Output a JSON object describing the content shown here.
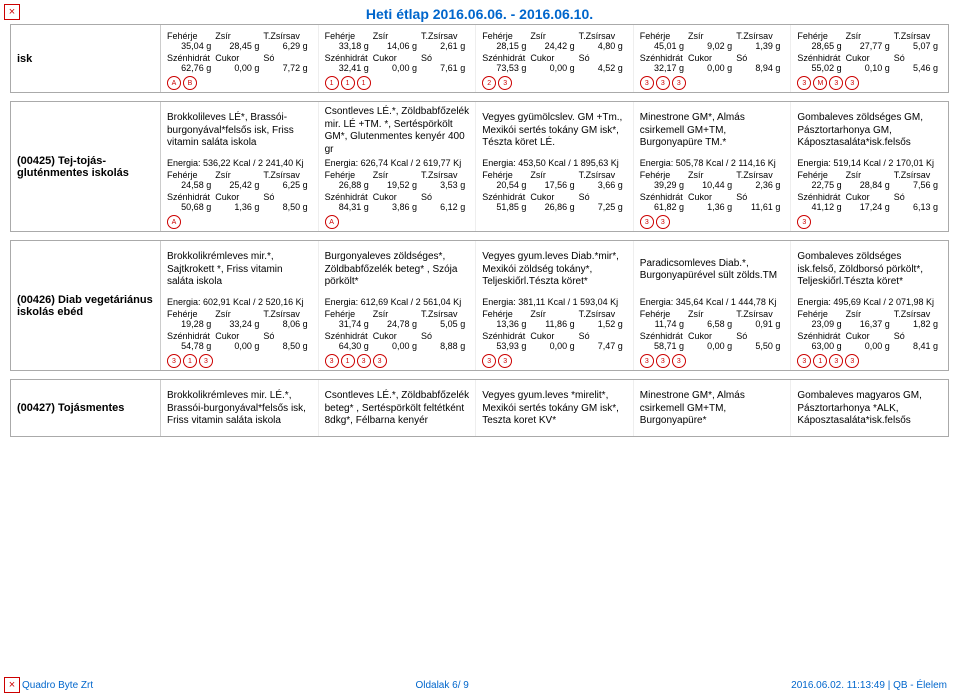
{
  "title": "Heti étlap 2016.06.06. - 2016.06.10.",
  "sections": [
    {
      "label": "isk",
      "noMenu": true,
      "days": [
        {
          "menu": "",
          "energy": "",
          "r1h": [
            "Fehérje",
            "Zsír",
            "T.Zsírsav"
          ],
          "r1v": [
            "35,04 g",
            "28,45 g",
            "6,29 g"
          ],
          "r2h": [
            "Szénhidrát",
            "Cukor",
            "Só"
          ],
          "r2v": [
            "62,76 g",
            "0,00 g",
            "7,72 g"
          ],
          "icons": [
            "A",
            "B"
          ]
        },
        {
          "menu": "",
          "energy": "",
          "r1h": [
            "Fehérje",
            "Zsír",
            "T.Zsírsav"
          ],
          "r1v": [
            "33,18 g",
            "14,06 g",
            "2,61 g"
          ],
          "r2h": [
            "Szénhidrát",
            "Cukor",
            "Só"
          ],
          "r2v": [
            "32,41 g",
            "0,00 g",
            "7,61 g"
          ],
          "icons": [
            "1",
            "1",
            "1"
          ]
        },
        {
          "menu": "",
          "energy": "",
          "r1h": [
            "Fehérje",
            "Zsír",
            "T.Zsírsav"
          ],
          "r1v": [
            "28,15 g",
            "24,42 g",
            "4,80 g"
          ],
          "r2h": [
            "Szénhidrát",
            "Cukor",
            "Só"
          ],
          "r2v": [
            "73,53 g",
            "0,00 g",
            "4,52 g"
          ],
          "icons": [
            "2",
            "3"
          ]
        },
        {
          "menu": "",
          "energy": "",
          "r1h": [
            "Fehérje",
            "Zsír",
            "T.Zsírsav"
          ],
          "r1v": [
            "45,01 g",
            "9,02 g",
            "1,39 g"
          ],
          "r2h": [
            "Szénhidrát",
            "Cukor",
            "Só"
          ],
          "r2v": [
            "32,17 g",
            "0,00 g",
            "8,94 g"
          ],
          "icons": [
            "3",
            "3",
            "3"
          ]
        },
        {
          "menu": "",
          "energy": "",
          "r1h": [
            "Fehérje",
            "Zsír",
            "T.Zsírsav"
          ],
          "r1v": [
            "28,65 g",
            "27,77 g",
            "5,07 g"
          ],
          "r2h": [
            "Szénhidrát",
            "Cukor",
            "Só"
          ],
          "r2v": [
            "55,02 g",
            "0,10 g",
            "5,46 g"
          ],
          "icons": [
            "3",
            "M",
            "3",
            "3"
          ]
        }
      ]
    },
    {
      "label": "(00425) Tej-tojás-gluténmentes iskolás",
      "days": [
        {
          "menu": "Brokkolileves LÉ*, Brassói-burgonyával*felsős isk, Friss vitamin saláta iskola",
          "energy": "Energia: 536,22 Kcal / 2 241,40 Kj",
          "r1h": [
            "Fehérje",
            "Zsír",
            "T.Zsírsav"
          ],
          "r1v": [
            "24,58 g",
            "25,42 g",
            "6,25 g"
          ],
          "r2h": [
            "Szénhidrát",
            "Cukor",
            "Só"
          ],
          "r2v": [
            "50,68 g",
            "1,36 g",
            "8,50 g"
          ],
          "icons": [
            "A"
          ]
        },
        {
          "menu": "Csontleves  LÉ.*, Zöldbabfőzelék mir. LÉ +TM. *, Sertéspörkölt GM*, Glutenmentes kenyér 400 gr",
          "energy": "Energia: 626,74 Kcal / 2 619,77 Kj",
          "r1h": [
            "Fehérje",
            "Zsír",
            "T.Zsírsav"
          ],
          "r1v": [
            "26,88 g",
            "19,52 g",
            "3,53 g"
          ],
          "r2h": [
            "Szénhidrát",
            "Cukor",
            "Só"
          ],
          "r2v": [
            "84,31 g",
            "3,86 g",
            "6,12 g"
          ],
          "icons": [
            "A"
          ]
        },
        {
          "menu": "Vegyes gyümölcslev. GM +Tm., Mexikói sertés tokány GM isk*, Tészta köret LÉ.",
          "energy": "Energia: 453,50 Kcal / 1 895,63 Kj",
          "r1h": [
            "Fehérje",
            "Zsír",
            "T.Zsírsav"
          ],
          "r1v": [
            "20,54 g",
            "17,56 g",
            "3,66 g"
          ],
          "r2h": [
            "Szénhidrát",
            "Cukor",
            "Só"
          ],
          "r2v": [
            "51,85 g",
            "26,86 g",
            "7,25 g"
          ],
          "icons": []
        },
        {
          "menu": "Minestrone GM*, Almás csirkemell GM+TM, Burgonyapüre TM.*",
          "energy": "Energia: 505,78 Kcal / 2 114,16 Kj",
          "r1h": [
            "Fehérje",
            "Zsír",
            "T.Zsírsav"
          ],
          "r1v": [
            "39,29 g",
            "10,44 g",
            "2,36 g"
          ],
          "r2h": [
            "Szénhidrát",
            "Cukor",
            "Só"
          ],
          "r2v": [
            "61,82 g",
            "1,36 g",
            "11,61 g"
          ],
          "icons": [
            "3",
            "3"
          ]
        },
        {
          "menu": "Gombaleves zöldséges GM, Pásztortarhonya GM, Káposztasaláta*isk.felsős",
          "energy": "Energia: 519,14 Kcal / 2 170,01 Kj",
          "r1h": [
            "Fehérje",
            "Zsír",
            "T.Zsírsav"
          ],
          "r1v": [
            "22,75 g",
            "28,84 g",
            "7,56 g"
          ],
          "r2h": [
            "Szénhidrát",
            "Cukor",
            "Só"
          ],
          "r2v": [
            "41,12 g",
            "17,24 g",
            "6,13 g"
          ],
          "icons": [
            "3"
          ]
        }
      ]
    },
    {
      "label": "(00426) Diab vegetáriánus iskolás ebéd",
      "days": [
        {
          "menu": "Brokkolikrémleves  mir.*, Sajtkrokett *, Friss vitamin saláta iskola",
          "energy": "Energia: 602,91 Kcal / 2 520,16 Kj",
          "r1h": [
            "Fehérje",
            "Zsír",
            "T.Zsírsav"
          ],
          "r1v": [
            "19,28 g",
            "33,24 g",
            "8,06 g"
          ],
          "r2h": [
            "Szénhidrát",
            "Cukor",
            "Só"
          ],
          "r2v": [
            "54,78 g",
            "0,00 g",
            "8,50 g"
          ],
          "icons": [
            "3",
            "1",
            "3"
          ]
        },
        {
          "menu": "Burgonyaleves zöldséges*, Zöldbabfőzelék beteg* , Szója pörkölt*",
          "energy": "Energia: 612,69 Kcal / 2 561,04 Kj",
          "r1h": [
            "Fehérje",
            "Zsír",
            "T.Zsírsav"
          ],
          "r1v": [
            "31,74 g",
            "24,78 g",
            "5,05 g"
          ],
          "r2h": [
            "Szénhidrát",
            "Cukor",
            "Só"
          ],
          "r2v": [
            "64,30 g",
            "0,00 g",
            "8,88 g"
          ],
          "icons": [
            "3",
            "1",
            "3",
            "3"
          ]
        },
        {
          "menu": "Vegyes gyum.leves Diab.*mir*, Mexikói zöldség tokány*, Teljeskiőrl.Tészta köret*",
          "energy": "Energia: 381,11 Kcal / 1 593,04 Kj",
          "r1h": [
            "Fehérje",
            "Zsír",
            "T.Zsírsav"
          ],
          "r1v": [
            "13,36 g",
            "11,86 g",
            "1,52 g"
          ],
          "r2h": [
            "Szénhidrát",
            "Cukor",
            "Só"
          ],
          "r2v": [
            "53,93 g",
            "0,00 g",
            "7,47 g"
          ],
          "icons": [
            "3",
            "3"
          ]
        },
        {
          "menu": "Paradicsomleves Diab.*, Burgonyapürével sült zölds.TM",
          "energy": "Energia: 345,64 Kcal / 1 444,78 Kj",
          "r1h": [
            "Fehérje",
            "Zsír",
            "T.Zsírsav"
          ],
          "r1v": [
            "11,74 g",
            "6,58 g",
            "0,91 g"
          ],
          "r2h": [
            "Szénhidrát",
            "Cukor",
            "Só"
          ],
          "r2v": [
            "58,71 g",
            "0,00 g",
            "5,50 g"
          ],
          "icons": [
            "3",
            "3",
            "3"
          ]
        },
        {
          "menu": "Gombaleves zöldséges isk.felső, Zöldborsó pörkölt*, Teljeskiőrl.Tészta köret*",
          "energy": "Energia: 495,69 Kcal / 2 071,98 Kj",
          "r1h": [
            "Fehérje",
            "Zsír",
            "T.Zsírsav"
          ],
          "r1v": [
            "23,09 g",
            "16,37 g",
            "1,82 g"
          ],
          "r2h": [
            "Szénhidrát",
            "Cukor",
            "Só"
          ],
          "r2v": [
            "63,00 g",
            "0,00 g",
            "8,41 g"
          ],
          "icons": [
            "3",
            "1",
            "3",
            "3"
          ]
        }
      ]
    },
    {
      "label": "(00427) Tojásmentes",
      "menuOnly": true,
      "days": [
        {
          "menu": "Brokkolikrémleves  mir. LÉ.*, Brassói-burgonyával*felsős isk, Friss vitamin saláta iskola"
        },
        {
          "menu": "Csontleves  LÉ.*, Zöldbabfőzelék beteg* , Sertéspörkölt feltétként 8dkg*, Félbarna  kenyér"
        },
        {
          "menu": "Vegyes gyum.leves *mirelit*, Mexikói sertés tokány GM isk*, Teszta koret KV*"
        },
        {
          "menu": "Minestrone GM*, Almás csirkemell GM+TM, Burgonyapüre*"
        },
        {
          "menu": "Gombaleves magyaros GM, Pásztortarhonya *ALK, Káposztasaláta*isk.felsős"
        }
      ]
    }
  ],
  "footer": {
    "left": "Quadro Byte Zrt",
    "center": "Oldalak         6/ 9",
    "right": "2016.06.02. 11:13:49 | QB - Élelem"
  }
}
